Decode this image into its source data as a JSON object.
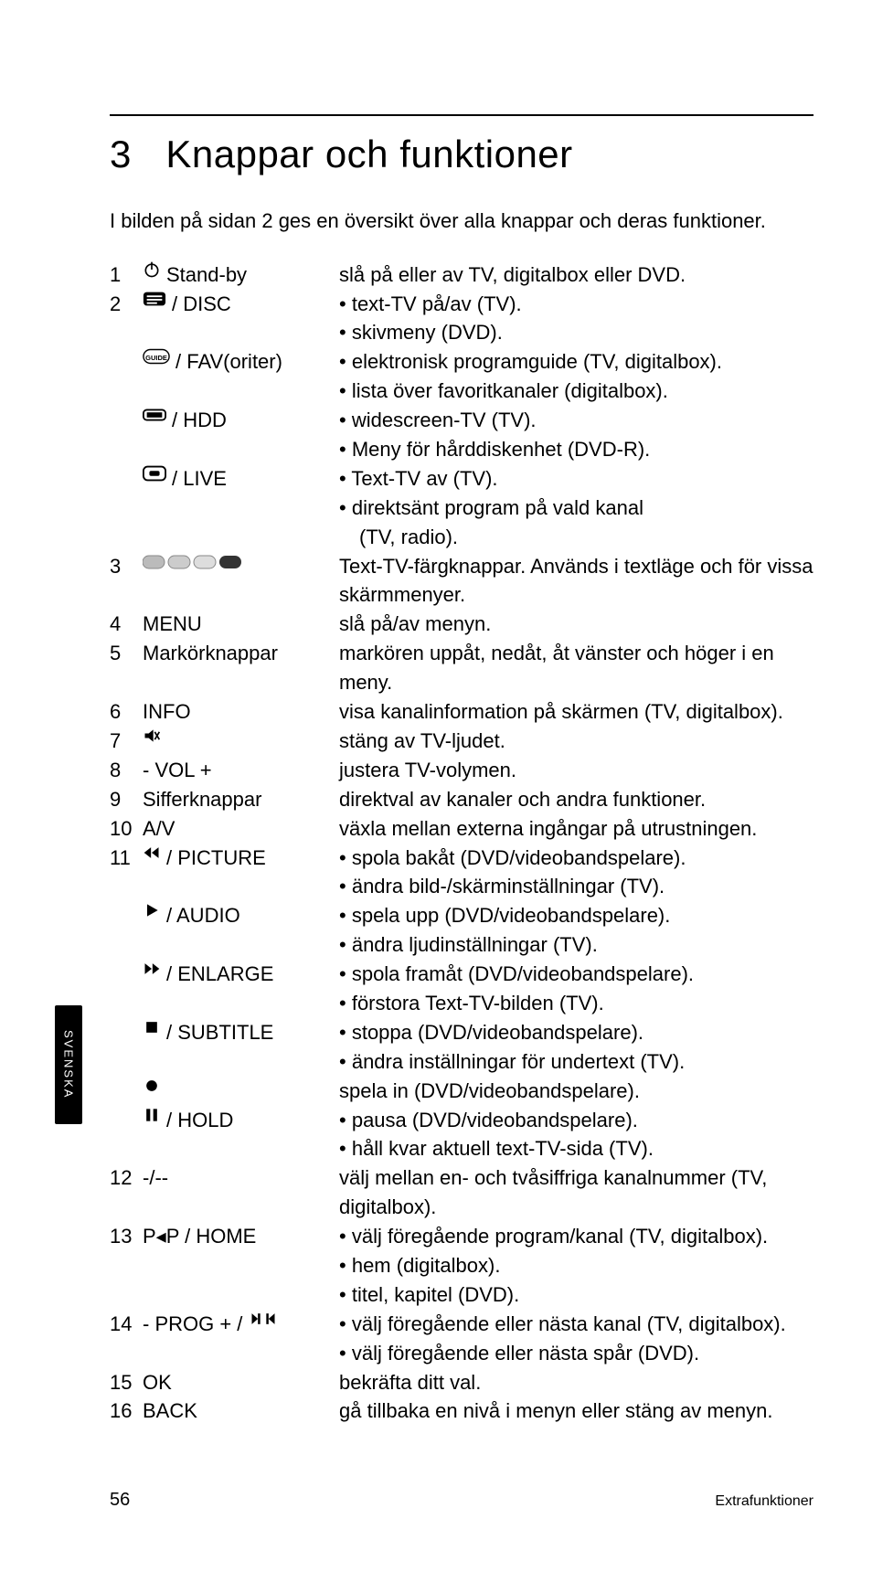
{
  "chapter_number": "3",
  "chapter_title": "Knappar och funktioner",
  "intro": "I bilden på sidan 2 ges en översikt över alla knappar och deras funktioner.",
  "side_tab": "SVENSKA",
  "page_number": "56",
  "section_label": "Extrafunktioner",
  "rows": [
    {
      "num": "1",
      "icon": "power",
      "key": "Stand-by",
      "desc_plain": "slå på eller av TV, digitalbox eller DVD."
    },
    {
      "num": "2",
      "icon": "teletext",
      "key": "/ DISC",
      "desc_bullets": [
        "text-TV på/av (TV).",
        "skivmeny (DVD)."
      ]
    },
    {
      "num": "",
      "icon": "guide",
      "key": "/ FAV(oriter)",
      "desc_bullets": [
        "elektronisk programguide (TV, digitalbox).",
        "lista över favoritkanaler (digitalbox)."
      ]
    },
    {
      "num": "",
      "icon": "widescreen",
      "key": "/ HDD",
      "desc_bullets": [
        "widescreen-TV (TV).",
        "Meny för hårddiskenhet (DVD-R)."
      ]
    },
    {
      "num": "",
      "icon": "cancel",
      "key": "/ LIVE",
      "desc_bullets_special": [
        "Text-TV av (TV).",
        "direktsänt program på vald kanal|(TV, radio)."
      ]
    },
    {
      "num": "3",
      "icon": "colorbtns",
      "key": "",
      "desc_plain": "Text-TV-färgknappar. Används i textläge och för vissa skärmmenyer."
    },
    {
      "num": "4",
      "icon": "",
      "key": "MENU",
      "desc_plain": "slå på/av menyn."
    },
    {
      "num": "5",
      "icon": "",
      "key": "Markörknappar",
      "desc_plain": "markören uppåt, nedåt, åt vänster och höger i en meny."
    },
    {
      "num": "6",
      "icon": "",
      "key": "INFO",
      "desc_plain": "visa kanalinformation på skärmen (TV, digitalbox)."
    },
    {
      "num": "7",
      "icon": "mute",
      "key": "",
      "desc_plain": "stäng av TV-ljudet."
    },
    {
      "num": "8",
      "icon": "",
      "key": "- VOL +",
      "desc_plain": "justera TV-volymen."
    },
    {
      "num": "9",
      "icon": "",
      "key": "Sifferknappar",
      "desc_plain": "direktval av kanaler och andra funktioner."
    },
    {
      "num": "10",
      "icon": "",
      "key": "A/V",
      "desc_plain": "växla mellan externa ingångar på utrustningen."
    },
    {
      "num": "11",
      "icon": "rewind",
      "key": "/ PICTURE",
      "desc_bullets": [
        "spola bakåt (DVD/videobandspelare).",
        "ändra bild-/skärminställningar (TV)."
      ]
    },
    {
      "num": "",
      "icon": "play",
      "key": "/ AUDIO",
      "desc_bullets": [
        "spela upp (DVD/videobandspelare).",
        "ändra ljudinställningar (TV)."
      ]
    },
    {
      "num": "",
      "icon": "fastforward",
      "key": "/ ENLARGE",
      "desc_bullets": [
        "spola framåt (DVD/videobandspelare).",
        "förstora Text-TV-bilden (TV)."
      ]
    },
    {
      "num": "",
      "icon": "stop",
      "key": "/ SUBTITLE",
      "desc_bullets": [
        "stoppa (DVD/videobandspelare).",
        "ändra inställningar för undertext (TV)."
      ]
    },
    {
      "num": "",
      "icon": "record",
      "key": "",
      "desc_plain": "spela in (DVD/videobandspelare)."
    },
    {
      "num": "",
      "icon": "pause",
      "key": "/ HOLD",
      "desc_bullets": [
        "pausa (DVD/videobandspelare).",
        "håll kvar aktuell text-TV-sida (TV)."
      ]
    },
    {
      "num": "12",
      "icon": "",
      "key": "-/--",
      "desc_plain": "välj mellan en- och tvåsiffriga kanalnummer (TV, digitalbox)."
    },
    {
      "num": "13",
      "icon": "",
      "key": "P◂P / HOME",
      "desc_bullets": [
        "välj föregående program/kanal (TV, digitalbox).",
        "hem (digitalbox).",
        "titel, kapitel (DVD)."
      ]
    },
    {
      "num": "14",
      "icon": "skip",
      "key_prefix": "- PROG + / ",
      "desc_bullets": [
        "välj föregående eller nästa kanal (TV, digitalbox).",
        "välj föregående eller nästa spår (DVD)."
      ]
    },
    {
      "num": "15",
      "icon": "",
      "key": "OK",
      "desc_plain": "bekräfta ditt val."
    },
    {
      "num": "16",
      "icon": "",
      "key": "BACK",
      "desc_plain": "gå tillbaka en nivå i menyn eller stäng av menyn."
    }
  ]
}
